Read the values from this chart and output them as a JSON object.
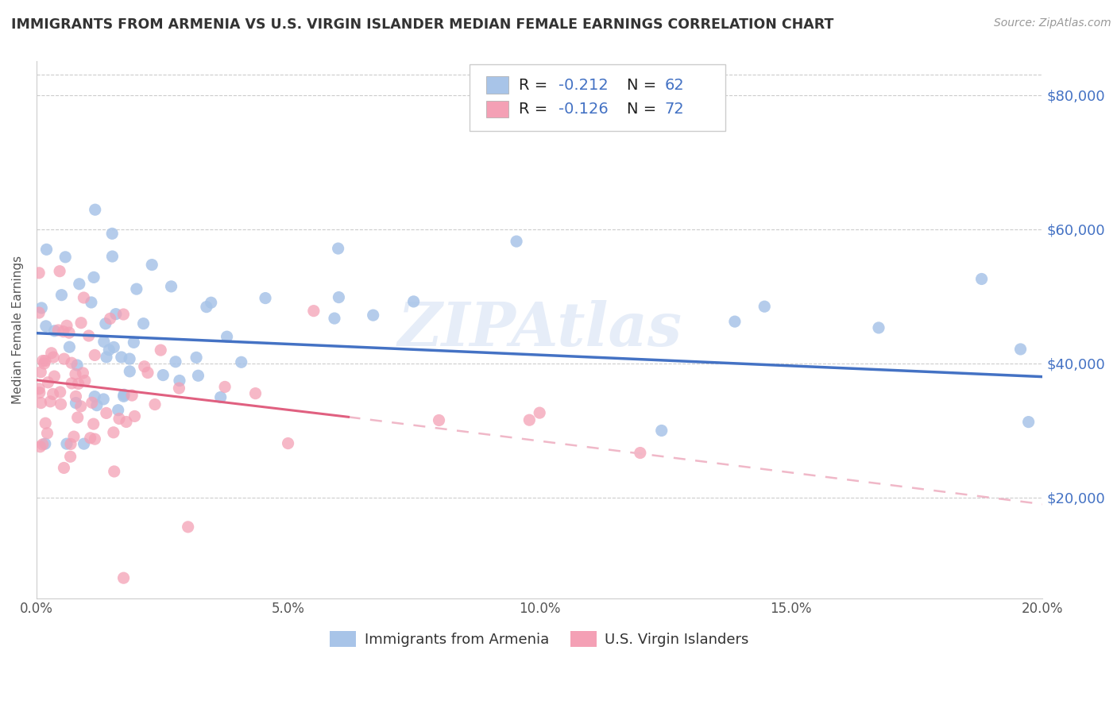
{
  "title": "IMMIGRANTS FROM ARMENIA VS U.S. VIRGIN ISLANDER MEDIAN FEMALE EARNINGS CORRELATION CHART",
  "source": "Source: ZipAtlas.com",
  "ylabel": "Median Female Earnings",
  "y_ticks": [
    20000,
    40000,
    60000,
    80000
  ],
  "y_tick_labels": [
    "$20,000",
    "$40,000",
    "$60,000",
    "$80,000"
  ],
  "x_min": 0.0,
  "x_max": 0.2,
  "y_min": 5000,
  "y_max": 85000,
  "legend_label1": "Immigrants from Armenia",
  "legend_label2": "U.S. Virgin Islanders",
  "color_blue": "#A8C4E8",
  "color_pink": "#F4A0B5",
  "line_blue": "#4472C4",
  "line_pink": "#E06080",
  "line_dashed_color": "#F0B8C8",
  "tick_color": "#4472C4",
  "watermark": "ZIPAtlas"
}
